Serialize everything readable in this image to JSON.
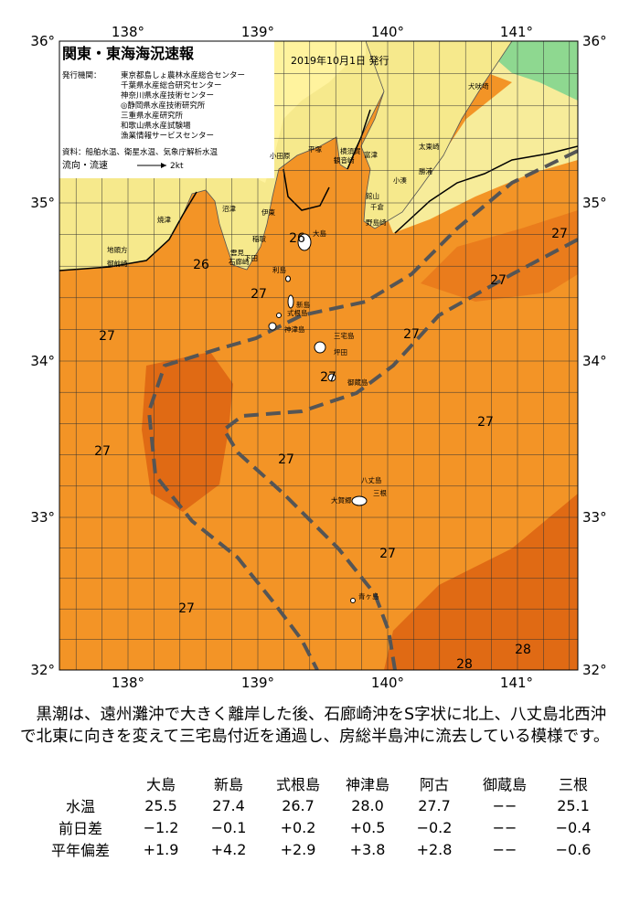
{
  "map": {
    "title": "関東・東海海況速報",
    "date": "2019年10月1日 発行",
    "issuer_label": "発行機関：",
    "issuers": [
      "東京都島しょ農林水産総合センター",
      "千葉県水産総合研究センター",
      "神奈川県水産技術センター",
      "◎静岡県水産技術研究所",
      "三重県水産研究所",
      "和歌山県水産試験場",
      "漁業情報サービスセンター"
    ],
    "sources": "資料：船舶水温、衛星水温、気象庁解析水温",
    "flow_label": "流向・流速",
    "flow_scale": "2kt",
    "lon_labels": [
      "138°",
      "139°",
      "140°",
      "141°"
    ],
    "lat_labels": [
      "36°",
      "35°",
      "34°",
      "33°",
      "32°"
    ],
    "place_names": [
      "小田原",
      "平塚",
      "横須賀",
      "観音崎",
      "富津",
      "館山",
      "千倉",
      "野島崎",
      "勝浦",
      "太東崎",
      "小湊",
      "犬吠埼",
      "伊東",
      "稲取",
      "下田",
      "雲見",
      "石廊崎",
      "沼津",
      "焼津",
      "地頭方",
      "御前崎",
      "大島",
      "利島",
      "新島",
      "式根島",
      "神津島",
      "三宅島",
      "坪田",
      "御蔵島",
      "八丈島",
      "三根",
      "大賀郷",
      "青ヶ島"
    ],
    "contour_labels": [
      "26",
      "26",
      "27",
      "27",
      "27",
      "27",
      "27",
      "27",
      "27",
      "27",
      "27",
      "27",
      "27",
      "28",
      "28"
    ]
  },
  "summary": "黒潮は、遠州灘沖で大きく離岸した後、石廊崎沖をS字状に北上、八丈島北西沖で北東に向きを変えて三宅島付近を通過し、房総半島沖に流去している模様です。",
  "table": {
    "columns": [
      "大島",
      "新島",
      "式根島",
      "神津島",
      "阿古",
      "御蔵島",
      "三根"
    ],
    "rows": [
      {
        "label": "水温",
        "cells": [
          "25.5",
          "27.4",
          "26.7",
          "28.0",
          "27.7",
          "−−",
          "25.1"
        ]
      },
      {
        "label": "前日差",
        "cells": [
          "−1.2",
          "−0.1",
          "+0.2",
          "+0.5",
          "−0.2",
          "−−",
          "−0.4"
        ]
      },
      {
        "label": "平年偏差",
        "cells": [
          "+1.9",
          "+4.2",
          "+2.9",
          "+3.8",
          "+2.8",
          "−−",
          "−0.6"
        ]
      }
    ]
  }
}
